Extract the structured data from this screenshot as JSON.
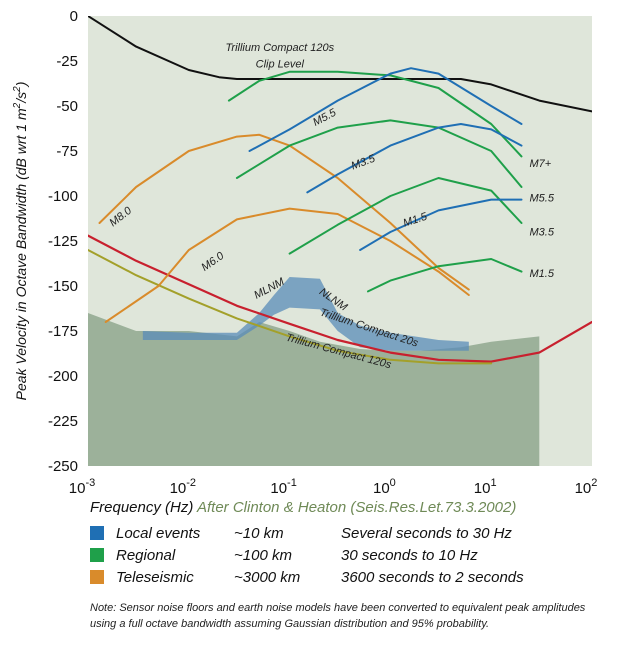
{
  "chart_data": {
    "type": "line",
    "ylabel": "Peak Velocity in Octave Bandwidth (dB wrt 1 m²/s²)",
    "ylabel_parts": {
      "main": "Peak Velocity in Octave Bandwidth (dB wrt 1 m",
      "sup1": "2",
      "mid": "/s",
      "sup2": "2",
      "end": ")"
    },
    "xscale": "log",
    "xlim": [
      0.001,
      100
    ],
    "ylim": [
      -250,
      0
    ],
    "x_tick_labels": [
      {
        "x": 0.001,
        "base": "10",
        "exp": "-3"
      },
      {
        "x": 0.01,
        "base": "10",
        "exp": "-2"
      },
      {
        "x": 0.1,
        "base": "10",
        "exp": "-1"
      },
      {
        "x": 1,
        "base": "10",
        "exp": "0"
      },
      {
        "x": 10,
        "base": "10",
        "exp": "1"
      },
      {
        "x": 100,
        "base": "10",
        "exp": "2"
      }
    ],
    "y_ticks": [
      0,
      -25,
      -50,
      -75,
      -100,
      -125,
      -150,
      -175,
      -200,
      -225,
      -250
    ],
    "x_label": "Frequency (Hz)",
    "source": "After Clinton & Heaton (Seis.Res.Let.73.3.2002)",
    "legend": [
      {
        "color": "#1f6fb4",
        "name": "Local events",
        "distance": "~10 km",
        "range": "Several seconds to 30 Hz"
      },
      {
        "color": "#1fa04a",
        "name": "Regional",
        "distance": "~100 km",
        "range": "30 seconds to 10 Hz"
      },
      {
        "color": "#d98b2b",
        "name": "Teleseismic",
        "distance": "~3000 km",
        "range": "3600 seconds to 2 seconds"
      }
    ],
    "note": "Note: Sensor noise floors and earth noise models have been converted to equivalent peak amplitudes using a full octave bandwidth assuming Gaussian distribution and 95% probability.",
    "labels": {
      "clip": [
        "Trillium Compact 120s",
        "Clip Level"
      ],
      "mlnm": "MLNM",
      "nlnm": "NLNM",
      "tc20": "Trillium Compact 20s",
      "tc120": "Trillium Compact 120s",
      "m80": "M8.0",
      "m60": "M6.0",
      "m55b": "M5.5",
      "m35b": "M3.5",
      "m15b": "M1.5",
      "m7g": "M7+",
      "m55g": "M5.5",
      "m35g": "M3.5",
      "m15g": "M1.5"
    },
    "colors": {
      "local": "#1f6fb4",
      "regional": "#1fa04a",
      "teleseismic": "#d98b2b",
      "clip": "#111111",
      "tc20": "#c8202e",
      "tc120": "#a3a02a",
      "earth_noise": "#7f9a7f",
      "noise_band": "#5a8cb8",
      "plot_bg": "#dfe6da"
    },
    "earth_noise": {
      "x": [
        0.001,
        0.003,
        0.01,
        0.03,
        0.05,
        0.1,
        0.2,
        0.5,
        1,
        2,
        5,
        10,
        30
      ],
      "y": [
        -165,
        -175,
        -175,
        -178,
        -170,
        -175,
        -181,
        -185,
        -186,
        -186,
        -184,
        -181,
        -178
      ]
    },
    "noise_band_upper": {
      "x": [
        0.0035,
        0.01,
        0.03,
        0.05,
        0.07,
        0.1,
        0.2,
        0.3,
        0.5,
        1,
        3,
        6
      ],
      "y": [
        -175,
        -176,
        -176,
        -165,
        -155,
        -145,
        -146,
        -165,
        -172,
        -176,
        -180,
        -181
      ]
    },
    "noise_band_lower": {
      "x": [
        0.0035,
        0.01,
        0.03,
        0.05,
        0.07,
        0.1,
        0.2,
        0.3,
        0.5,
        1,
        3,
        6
      ],
      "y": [
        -180,
        -180,
        -180,
        -172,
        -166,
        -162,
        -163,
        -175,
        -184,
        -186,
        -186,
        -186
      ]
    },
    "series": [
      {
        "name": "Trillium Compact 120s Clip Level",
        "group": "clip",
        "x": [
          0.001,
          0.003,
          0.01,
          0.02,
          0.03,
          0.05,
          0.1,
          0.3,
          1,
          5,
          10,
          30,
          100
        ],
        "y": [
          0,
          -17,
          -30,
          -34,
          -35,
          -35,
          -35,
          -35,
          -35,
          -35,
          -38,
          -47,
          -53
        ]
      },
      {
        "name": "Trillium Compact 20s",
        "group": "tc20",
        "x": [
          0.001,
          0.003,
          0.01,
          0.03,
          0.1,
          0.3,
          1,
          3,
          10,
          30,
          100
        ],
        "y": [
          -122,
          -136,
          -149,
          -161,
          -171,
          -180,
          -187,
          -191,
          -192,
          -187,
          -170
        ]
      },
      {
        "name": "Trillium Compact 120s",
        "group": "tc120",
        "x": [
          0.001,
          0.003,
          0.01,
          0.03,
          0.1,
          0.3,
          1,
          3,
          10
        ],
        "y": [
          -130,
          -144,
          -157,
          -168,
          -178,
          -186,
          -191,
          -193,
          -193
        ]
      },
      {
        "group": "teleseismic",
        "x": [
          0.0013,
          0.003,
          0.01,
          0.03,
          0.05,
          0.1,
          0.3,
          1,
          3,
          6
        ],
        "y": [
          -115,
          -95,
          -75,
          -67,
          -66,
          -72,
          -90,
          -115,
          -140,
          -152
        ]
      },
      {
        "group": "teleseismic",
        "x": [
          0.0015,
          0.005,
          0.01,
          0.03,
          0.1,
          0.3,
          1,
          3,
          6
        ],
        "y": [
          -170,
          -150,
          -130,
          -113,
          -107,
          -110,
          -125,
          -142,
          -155
        ]
      },
      {
        "group": "regional",
        "x": [
          0.025,
          0.05,
          0.1,
          0.3,
          1,
          3,
          10,
          20
        ],
        "y": [
          -47,
          -36,
          -31,
          -31,
          -33,
          -40,
          -60,
          -78
        ]
      },
      {
        "group": "regional",
        "x": [
          0.03,
          0.1,
          0.3,
          1,
          3,
          10,
          20
        ],
        "y": [
          -90,
          -72,
          -62,
          -58,
          -62,
          -75,
          -95
        ]
      },
      {
        "group": "regional",
        "x": [
          0.1,
          0.3,
          1,
          3,
          10,
          20
        ],
        "y": [
          -132,
          -116,
          -100,
          -90,
          -97,
          -115
        ]
      },
      {
        "group": "regional",
        "x": [
          0.6,
          1,
          3,
          10,
          20
        ],
        "y": [
          -153,
          -147,
          -139,
          -135,
          -142
        ]
      },
      {
        "group": "local",
        "x": [
          0.04,
          0.1,
          0.3,
          1,
          1.6,
          3,
          10,
          20
        ],
        "y": [
          -75,
          -63,
          -47,
          -32,
          -29,
          -32,
          -50,
          -60
        ]
      },
      {
        "group": "local",
        "x": [
          0.15,
          0.3,
          1,
          3,
          5,
          10,
          20
        ],
        "y": [
          -98,
          -88,
          -72,
          -62,
          -60,
          -63,
          -72
        ]
      },
      {
        "group": "local",
        "x": [
          0.5,
          1,
          3,
          10,
          20
        ],
        "y": [
          -130,
          -120,
          -108,
          -102,
          -102
        ]
      }
    ]
  }
}
